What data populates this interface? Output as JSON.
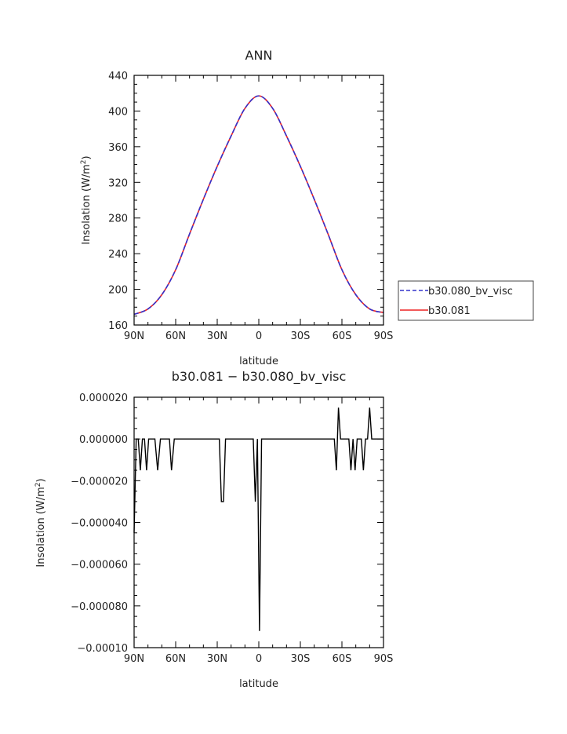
{
  "chart_data": [
    {
      "type": "line",
      "title": "ANN",
      "xlabel": "latitude",
      "ylabel": "Insolation (W/m²)",
      "ylabel_main": "Insolation (W/m",
      "ylabel_sup": "2",
      "ylabel_close": ")",
      "x_tick_labels": [
        "90N",
        "60N",
        "30N",
        "0",
        "30S",
        "60S",
        "90S"
      ],
      "x_tick_values": [
        90,
        60,
        30,
        0,
        -30,
        -60,
        -90
      ],
      "xlim": [
        90,
        -90
      ],
      "y_tick_labels": [
        "160",
        "200",
        "240",
        "280",
        "320",
        "360",
        "400",
        "440"
      ],
      "ylim": [
        160,
        440
      ],
      "legend_position": "right",
      "series": [
        {
          "name": "b30.080_bv_visc",
          "color": "#3333cc",
          "dash": true,
          "x": [
            90,
            80,
            70,
            60,
            50,
            40,
            30,
            20,
            10,
            0,
            -10,
            -20,
            -30,
            -40,
            -50,
            -60,
            -70,
            -80,
            -90
          ],
          "y": [
            172,
            178,
            194,
            222,
            262,
            301,
            338,
            372,
            403,
            417,
            403,
            372,
            338,
            301,
            262,
            222,
            194,
            178,
            174
          ]
        },
        {
          "name": "b30.081",
          "color": "#ee2222",
          "dash": false,
          "x": [
            90,
            80,
            70,
            60,
            50,
            40,
            30,
            20,
            10,
            0,
            -10,
            -20,
            -30,
            -40,
            -50,
            -60,
            -70,
            -80,
            -90
          ],
          "y": [
            172,
            178,
            194,
            222,
            262,
            301,
            338,
            372,
            403,
            417,
            403,
            372,
            338,
            301,
            262,
            222,
            194,
            178,
            174
          ]
        }
      ]
    },
    {
      "type": "line",
      "title": "b30.081 − b30.080_bv_visc",
      "xlabel": "latitude",
      "ylabel": "Insolation (W/m²)",
      "ylabel_main": "Insolation (W/m",
      "ylabel_sup": "2",
      "ylabel_close": ")",
      "x_tick_labels": [
        "90N",
        "60N",
        "30N",
        "0",
        "30S",
        "60S",
        "90S"
      ],
      "x_tick_values": [
        90,
        60,
        30,
        0,
        -30,
        -60,
        -90
      ],
      "xlim": [
        90,
        -90
      ],
      "y_tick_labels": [
        "0.000020",
        "0.000000",
        "−0.000020",
        "−0.000040",
        "−0.000060",
        "−0.000080",
        "−0.00010"
      ],
      "y_tick_values": [
        2e-05,
        0,
        -2e-05,
        -4e-05,
        -6e-05,
        -8e-05,
        -0.0001
      ],
      "ylim": [
        -0.0001,
        2e-05
      ],
      "series": [
        {
          "color": "#000000",
          "x": [
            90,
            88.5,
            87,
            85.5,
            84,
            82.5,
            81,
            79.5,
            78,
            76.5,
            75,
            73,
            71,
            69,
            67.5,
            66,
            64.5,
            63,
            61,
            59.5,
            58,
            56.5,
            55,
            30,
            28.5,
            27,
            25.5,
            24,
            4,
            2.5,
            1,
            -0.5,
            -2,
            -3.5,
            -5,
            -53,
            -54.5,
            -56,
            -57.5,
            -59,
            -60.5,
            -62,
            -65,
            -66.5,
            -68,
            -69.5,
            -71,
            -72.5,
            -74,
            -75.5,
            -77,
            -78.5,
            -80,
            -81.5,
            -83,
            -84.5,
            -86,
            -90
          ],
          "y": [
            -4.5e-05,
            0,
            0,
            -1.5e-05,
            0,
            0,
            -1.5e-05,
            0,
            0,
            0,
            0,
            -1.5e-05,
            0,
            0,
            0,
            0,
            0,
            -1.5e-05,
            0,
            0,
            0,
            0,
            0,
            0,
            0,
            -3e-05,
            -3e-05,
            0,
            0,
            -3e-05,
            0,
            -9.2e-05,
            0,
            0,
            0,
            0,
            0,
            -1.5e-05,
            1.5e-05,
            0,
            0,
            0,
            0,
            -1.5e-05,
            0,
            -1.5e-05,
            0,
            0,
            0,
            -1.5e-05,
            0,
            0,
            1.5e-05,
            0,
            0,
            0,
            0,
            0
          ]
        }
      ]
    }
  ]
}
